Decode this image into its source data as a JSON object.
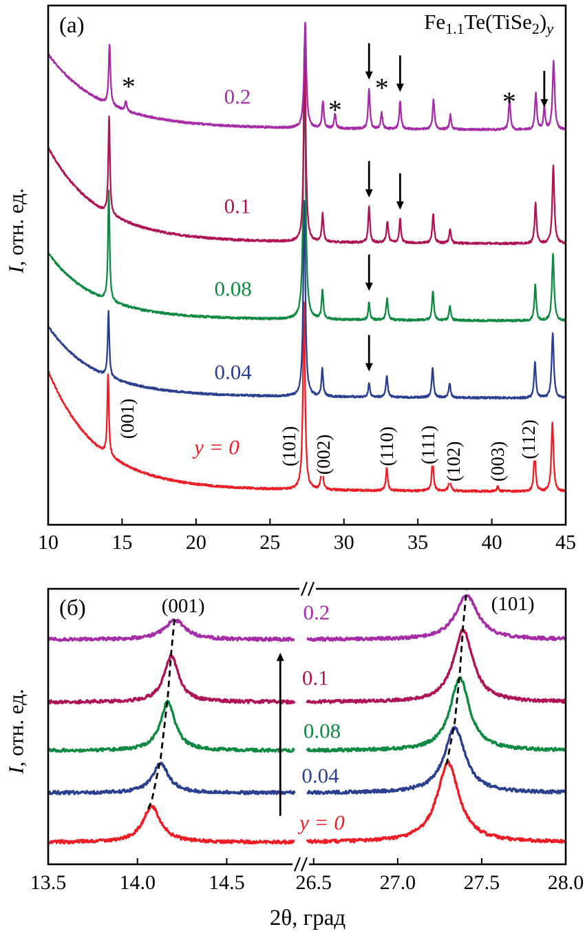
{
  "figure": {
    "panel_a": {
      "tag": "(а)"
    },
    "panel_b": {
      "tag": "(б)"
    },
    "title": {
      "f1": "Fe",
      "s1": "1.1",
      "f2": "Te(TiSe",
      "s2": "2",
      "f3": ")",
      "s3": "y"
    },
    "ylabel": {
      "italic": "I",
      "rest": ", отн. ед."
    },
    "xlabel": "2θ, град",
    "asterisk": "*"
  },
  "chart_data": [
    {
      "type": "line",
      "panel": "a",
      "description": "Powder XRD patterns of Fe1.1Te(TiSe2)y for y = 0, 0.04, 0.08, 0.1, 0.2; intensity in arbitrary units with vertical offsets; arrows and asterisks mark extra peaks of doped samples",
      "xlim": [
        10,
        45
      ],
      "ylim": [
        0,
        6
      ],
      "x_ticks": [
        10,
        15,
        20,
        25,
        30,
        35,
        40,
        45
      ],
      "x_tick_labels": [
        "10",
        "15",
        "20",
        "25",
        "30",
        "35",
        "40",
        "45"
      ],
      "peaks_format": "[two_theta_deg, relative_intensity, fwhm_deg]",
      "series": [
        {
          "name": "y = 0",
          "color": "#ee1c25",
          "offset": 0.0,
          "bg_amp": 1.45,
          "bg_tau": 3.3,
          "peaks": [
            [
              14.05,
              1.0,
              0.13
            ],
            [
              27.3,
              2.3,
              0.17
            ],
            [
              28.52,
              0.38,
              0.14
            ],
            [
              32.9,
              0.28,
              0.15
            ],
            [
              36.0,
              0.38,
              0.15
            ],
            [
              37.15,
              0.2,
              0.14
            ],
            [
              40.4,
              0.06,
              0.15
            ],
            [
              42.9,
              0.5,
              0.15
            ],
            [
              44.1,
              0.85,
              0.17
            ]
          ]
        },
        {
          "name": "0.04",
          "color": "#2b3f90",
          "offset": 1.15,
          "bg_amp": 0.85,
          "bg_tau": 3.2,
          "peaks": [
            [
              14.08,
              0.8,
              0.13
            ],
            [
              27.32,
              2.4,
              0.17
            ],
            [
              28.54,
              0.34,
              0.14
            ],
            [
              31.7,
              0.18,
              0.13
            ],
            [
              32.9,
              0.26,
              0.15
            ],
            [
              36.0,
              0.36,
              0.15
            ],
            [
              37.15,
              0.18,
              0.14
            ],
            [
              42.92,
              0.45,
              0.15
            ],
            [
              44.12,
              0.8,
              0.17
            ]
          ]
        },
        {
          "name": "0.08",
          "color": "#108a42",
          "offset": 2.1,
          "bg_amp": 0.8,
          "bg_tau": 3.2,
          "peaks": [
            [
              14.1,
              1.35,
              0.13
            ],
            [
              27.33,
              3.4,
              0.17
            ],
            [
              28.55,
              0.35,
              0.14
            ],
            [
              31.7,
              0.22,
              0.13
            ],
            [
              32.92,
              0.26,
              0.15
            ],
            [
              36.02,
              0.36,
              0.15
            ],
            [
              37.17,
              0.18,
              0.14
            ],
            [
              42.94,
              0.45,
              0.15
            ],
            [
              44.14,
              0.82,
              0.17
            ]
          ]
        },
        {
          "name": "0.1",
          "color": "#b01355",
          "offset": 3.05,
          "bg_amp": 1.15,
          "bg_tau": 3.4,
          "peaks": [
            [
              14.12,
              1.2,
              0.13
            ],
            [
              27.35,
              2.3,
              0.17
            ],
            [
              28.56,
              0.34,
              0.14
            ],
            [
              31.7,
              0.45,
              0.14
            ],
            [
              32.94,
              0.26,
              0.15
            ],
            [
              33.8,
              0.3,
              0.14
            ],
            [
              36.04,
              0.36,
              0.15
            ],
            [
              37.18,
              0.18,
              0.14
            ],
            [
              42.96,
              0.5,
              0.15
            ],
            [
              44.16,
              0.95,
              0.17
            ]
          ]
        },
        {
          "name": "0.2",
          "color": "#a62ba6",
          "offset": 4.45,
          "bg_amp": 0.9,
          "bg_tau": 3.6,
          "peaks": [
            [
              14.15,
              0.75,
              0.14
            ],
            [
              15.25,
              0.12,
              0.14
            ],
            [
              27.38,
              1.3,
              0.18
            ],
            [
              28.58,
              0.32,
              0.15
            ],
            [
              29.4,
              0.18,
              0.14
            ],
            [
              31.7,
              0.5,
              0.14
            ],
            [
              32.55,
              0.2,
              0.14
            ],
            [
              33.8,
              0.35,
              0.14
            ],
            [
              36.06,
              0.36,
              0.15
            ],
            [
              37.2,
              0.18,
              0.14
            ],
            [
              41.2,
              0.4,
              0.14
            ],
            [
              42.98,
              0.45,
              0.15
            ],
            [
              43.55,
              0.28,
              0.14
            ],
            [
              44.18,
              0.85,
              0.17
            ]
          ]
        }
      ],
      "series_labels": [
        {
          "text": "0.2",
          "x": 22.8,
          "y": 4.86,
          "color": "#a62ba6",
          "italic": false
        },
        {
          "text": "0.1",
          "x": 22.8,
          "y": 3.51,
          "color": "#b01355",
          "italic": false
        },
        {
          "text": "0.08",
          "x": 22.5,
          "y": 2.49,
          "color": "#108a42",
          "italic": false
        },
        {
          "text": "0.04",
          "x": 22.5,
          "y": 1.47,
          "color": "#2b3f90",
          "italic": false
        },
        {
          "text": "y = 0",
          "x": 21.4,
          "y": 0.54,
          "color": "#ee1c25",
          "italic": true
        }
      ],
      "peak_labels": [
        {
          "text": "(001)",
          "x": 15.35,
          "y": 0.9
        },
        {
          "text": "(101)",
          "x": 26.29,
          "y": 0.56
        },
        {
          "text": "(002)",
          "x": 28.6,
          "y": 0.46
        },
        {
          "text": "(110)",
          "x": 32.9,
          "y": 0.56
        },
        {
          "text": "(111)",
          "x": 35.7,
          "y": 0.58
        },
        {
          "text": "(102)",
          "x": 37.4,
          "y": 0.37
        },
        {
          "text": "(003)",
          "x": 40.4,
          "y": 0.37
        },
        {
          "text": "(112)",
          "x": 42.5,
          "y": 0.64
        }
      ],
      "asterisks": [
        {
          "x": 15.44,
          "y": 4.97
        },
        {
          "x": 29.4,
          "y": 4.68
        },
        {
          "x": 32.57,
          "y": 4.95
        },
        {
          "x": 41.18,
          "y": 4.78
        }
      ],
      "arrows_down": [
        {
          "x": 31.7,
          "tip_y": 1.48
        },
        {
          "x": 31.7,
          "tip_y": 2.47
        },
        {
          "x": 31.7,
          "tip_y": 3.62
        },
        {
          "x": 33.8,
          "tip_y": 3.47
        },
        {
          "x": 31.7,
          "tip_y": 5.07
        },
        {
          "x": 33.8,
          "tip_y": 4.92
        },
        {
          "x": 43.55,
          "tip_y": 4.73
        }
      ]
    },
    {
      "type": "line",
      "panel": "b",
      "description": "Enlarged (001) and (101) reflections with broken 2-theta axis; dashed lines trace peak shift with increasing y",
      "ylim": [
        0,
        3.1
      ],
      "peaks_format": "[two_theta_deg, relative_intensity, fwhm_deg]",
      "segments": [
        {
          "xlim": [
            13.5,
            14.88
          ],
          "x_ticks": [
            13.5,
            14.0,
            14.5
          ],
          "x_tick_labels": [
            "13.5",
            "14.0",
            "14.5"
          ]
        },
        {
          "xlim": [
            26.46,
            28.0
          ],
          "x_ticks": [
            26.5,
            27.0,
            27.5,
            28.0
          ],
          "x_tick_labels": [
            "26.5",
            "27.0",
            "27.5",
            "28.0"
          ]
        }
      ],
      "series": [
        {
          "name": "y = 0",
          "color": "#ee1c25",
          "offset": 0.0,
          "peaks": [
            [
              14.08,
              0.41,
              0.12
            ],
            [
              27.3,
              0.9,
              0.16
            ]
          ]
        },
        {
          "name": "0.04",
          "color": "#2b3f90",
          "offset": 0.56,
          "peaks": [
            [
              14.13,
              0.33,
              0.11
            ],
            [
              27.34,
              0.74,
              0.15
            ]
          ]
        },
        {
          "name": "0.08",
          "color": "#108a42",
          "offset": 1.04,
          "peaks": [
            [
              14.17,
              0.55,
              0.1
            ],
            [
              27.37,
              0.82,
              0.14
            ]
          ]
        },
        {
          "name": "0.1",
          "color": "#b01355",
          "offset": 1.59,
          "peaks": [
            [
              14.19,
              0.52,
              0.1
            ],
            [
              27.39,
              0.82,
              0.14
            ]
          ]
        },
        {
          "name": "0.2",
          "color": "#a62ba6",
          "offset": 2.3,
          "peaks": [
            [
              14.21,
              0.22,
              0.14
            ],
            [
              27.41,
              0.5,
              0.16
            ]
          ]
        }
      ],
      "series_labels": [
        {
          "text": "0.2",
          "seg": 1,
          "x": 26.517,
          "y": 2.6,
          "color": "#a62ba6",
          "italic": false
        },
        {
          "text": "0.1",
          "seg": 1,
          "x": 26.51,
          "y": 1.86,
          "color": "#b01355",
          "italic": false
        },
        {
          "text": "0.08",
          "seg": 1,
          "x": 26.55,
          "y": 1.26,
          "color": "#108a42",
          "italic": false
        },
        {
          "text": "0.04",
          "seg": 1,
          "x": 26.54,
          "y": 0.75,
          "color": "#2b3f90",
          "italic": false
        },
        {
          "text": "y = 0",
          "seg": 1,
          "x": 26.55,
          "y": 0.22,
          "color": "#ee1c25",
          "italic": true
        }
      ],
      "peak_labels": [
        {
          "text": "(001)",
          "seg": 0,
          "x": 14.256,
          "y": 2.68
        },
        {
          "text": "(101)",
          "seg": 1,
          "x": 27.685,
          "y": 2.7
        }
      ],
      "dashed_guides": [
        {
          "seg": 0,
          "points": [
            [
              14.06,
              0.38
            ],
            [
              14.08,
              0.47
            ],
            [
              14.13,
              0.95
            ],
            [
              14.17,
              1.65
            ],
            [
              14.19,
              2.17
            ],
            [
              14.21,
              2.58
            ],
            [
              14.22,
              2.72
            ]
          ]
        },
        {
          "seg": 1,
          "points": [
            [
              27.29,
              0.88
            ],
            [
              27.3,
              0.97
            ],
            [
              27.34,
              1.37
            ],
            [
              27.37,
              1.93
            ],
            [
              27.39,
              2.48
            ],
            [
              27.41,
              2.86
            ]
          ]
        }
      ],
      "up_arrow": {
        "seg": 0,
        "x": 14.8,
        "y0": 0.3,
        "y1": 2.15
      }
    }
  ]
}
